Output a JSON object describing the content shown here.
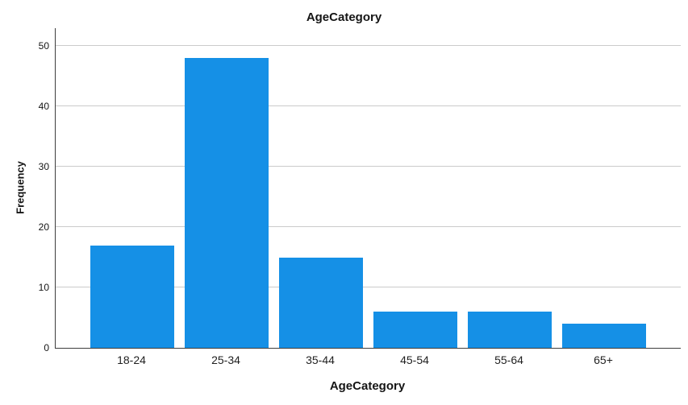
{
  "chart_data": {
    "type": "bar",
    "title": "AgeCategory",
    "xlabel": "AgeCategory",
    "ylabel": "Frequency",
    "categories": [
      "18-24",
      "25-34",
      "35-44",
      "45-54",
      "55-64",
      "65+"
    ],
    "values": [
      17,
      48,
      15,
      6,
      6,
      4
    ],
    "yticks": [
      0,
      10,
      20,
      30,
      40,
      50
    ],
    "ylim": [
      0,
      53
    ],
    "grid": "horizontal-only",
    "legend": "none"
  },
  "colors": {
    "bar": "#1590e6",
    "axis": "#3d3d3d",
    "gridline": "#cbcbcb",
    "text": "#151515",
    "background": "#ffffff"
  }
}
